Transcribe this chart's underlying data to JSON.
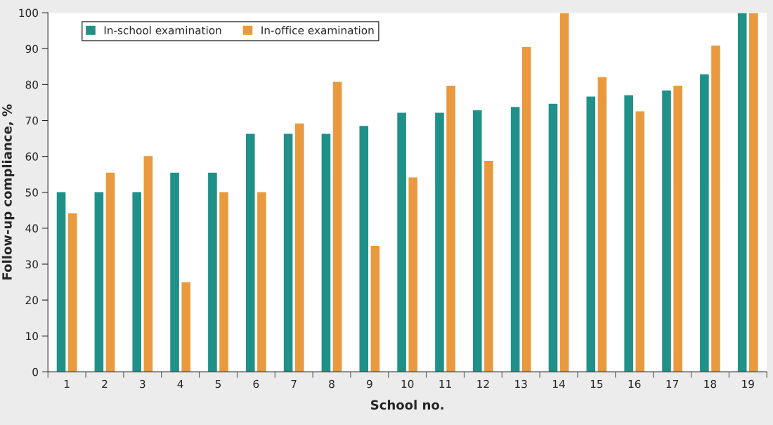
{
  "chart_data": {
    "type": "bar",
    "xlabel": "School no.",
    "ylabel": "Follow-up compliance, %",
    "categories": [
      "1",
      "2",
      "3",
      "4",
      "5",
      "6",
      "7",
      "8",
      "9",
      "10",
      "11",
      "12",
      "13",
      "14",
      "15",
      "16",
      "17",
      "18",
      "19"
    ],
    "series": [
      {
        "name": "In-school examination",
        "color": "#1f9188",
        "values": [
          50.2,
          50.2,
          50.2,
          55.6,
          55.6,
          66.4,
          66.4,
          66.4,
          68.6,
          72.3,
          72.3,
          73.0,
          73.9,
          74.8,
          76.8,
          77.2,
          78.5,
          83.0,
          100
        ]
      },
      {
        "name": "In-office examination",
        "color": "#e99a3e",
        "values": [
          44.3,
          55.6,
          60.2,
          25.1,
          50.2,
          50.2,
          69.3,
          80.9,
          35.2,
          54.3,
          79.8,
          58.9,
          90.6,
          100,
          82.2,
          72.7,
          79.8,
          91.0,
          100
        ]
      }
    ],
    "ylim": [
      0,
      100
    ],
    "yticks": [
      0,
      10,
      20,
      30,
      40,
      50,
      60,
      70,
      80,
      90,
      100
    ],
    "grid": false,
    "legend": "top left"
  }
}
